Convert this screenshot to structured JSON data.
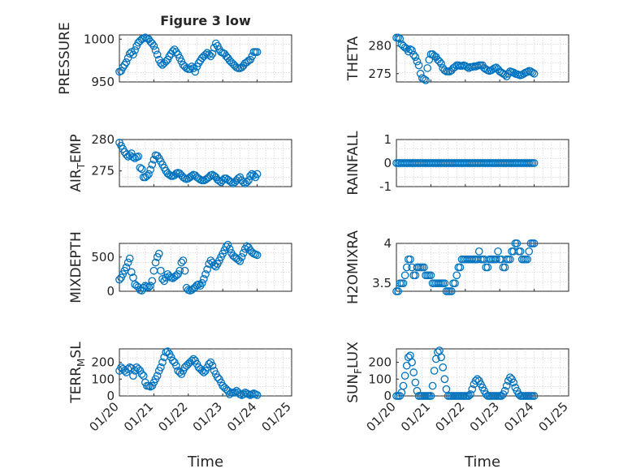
{
  "figure_title": "Figure 3 low",
  "x_axis_label": "Time",
  "x_ticks": [
    "01/20",
    "01/21",
    "01/22",
    "01/23",
    "01/24",
    "01/25"
  ],
  "colors": {
    "marker": "#0072bd",
    "axes": "#262626",
    "grid": "#bdbdbd"
  },
  "chart_data": [
    {
      "type": "scatter",
      "ylabel": "PRESSURE",
      "ylim": [
        950,
        1005
      ],
      "yticks": [
        950,
        1000
      ],
      "x": [
        0.0,
        0.05,
        0.1,
        0.15,
        0.2,
        0.25,
        0.3,
        0.35,
        0.4,
        0.45,
        0.5,
        0.55,
        0.6,
        0.65,
        0.7,
        0.75,
        0.8,
        0.85,
        0.9,
        0.95,
        1.0,
        1.05,
        1.1,
        1.15,
        1.2,
        1.25,
        1.3,
        1.35,
        1.4,
        1.45,
        1.5,
        1.55,
        1.6,
        1.65,
        1.7,
        1.75,
        1.8,
        1.85,
        1.9,
        1.95,
        2.0,
        2.05,
        2.1,
        2.15,
        2.2,
        2.25,
        2.3,
        2.35,
        2.4,
        2.45,
        2.5,
        2.55,
        2.6,
        2.65,
        2.7,
        2.75,
        2.8,
        2.85,
        2.9,
        2.95,
        3.0,
        3.05,
        3.1,
        3.15,
        3.2,
        3.25,
        3.3,
        3.35,
        3.4,
        3.45,
        3.5,
        3.55,
        3.6,
        3.65,
        3.7,
        3.75,
        3.8,
        3.85,
        3.9,
        3.95,
        4.0
      ],
      "y": [
        962,
        963,
        967,
        970,
        973,
        978,
        983,
        985,
        982,
        987,
        992,
        996,
        998,
        1000,
        1001,
        1002,
        1001,
        1000,
        997,
        995,
        992,
        987,
        982,
        976,
        972,
        970,
        972,
        974,
        976,
        980,
        983,
        986,
        988,
        985,
        982,
        978,
        974,
        970,
        968,
        966,
        965,
        965,
        968,
        966,
        962,
        968,
        972,
        975,
        978,
        980,
        982,
        984,
        982,
        980,
        983,
        990,
        995,
        992,
        988,
        985,
        984,
        983,
        980,
        978,
        975,
        973,
        971,
        969,
        967,
        966,
        966,
        967,
        969,
        972,
        973,
        975,
        976,
        980,
        985,
        985,
        985
      ],
      "data_note_ignore": ""
    },
    {
      "type": "scatter",
      "ylabel": "THETA",
      "ylim": [
        273.5,
        282
      ],
      "yticks": [
        275,
        280
      ],
      "x": [
        0.0,
        0.05,
        0.1,
        0.15,
        0.2,
        0.25,
        0.3,
        0.35,
        0.4,
        0.45,
        0.5,
        0.55,
        0.6,
        0.65,
        0.7,
        0.75,
        0.8,
        0.85,
        0.9,
        0.95,
        1.0,
        1.05,
        1.1,
        1.15,
        1.2,
        1.25,
        1.3,
        1.35,
        1.4,
        1.45,
        1.5,
        1.55,
        1.6,
        1.65,
        1.7,
        1.75,
        1.8,
        1.85,
        1.9,
        1.95,
        2.0,
        2.05,
        2.1,
        2.15,
        2.2,
        2.25,
        2.3,
        2.35,
        2.4,
        2.45,
        2.5,
        2.55,
        2.6,
        2.65,
        2.7,
        2.75,
        2.8,
        2.85,
        2.9,
        2.95,
        3.0,
        3.05,
        3.1,
        3.15,
        3.2,
        3.25,
        3.3,
        3.35,
        3.4,
        3.45,
        3.5,
        3.55,
        3.6,
        3.65,
        3.7,
        3.75,
        3.8,
        3.85,
        3.9,
        3.95,
        4.0
      ],
      "y": [
        281.5,
        281.5,
        281.3,
        280.3,
        280.0,
        279.7,
        279.5,
        279.0,
        279.4,
        279.2,
        278.4,
        278.0,
        277.2,
        276.5,
        275.0,
        274.2,
        274.0,
        273.8,
        276.0,
        277.5,
        278.5,
        278.5,
        278.2,
        278.0,
        277.5,
        277.2,
        276.8,
        276.0,
        275.6,
        275.4,
        275.4,
        275.4,
        275.6,
        276.0,
        276.2,
        276.5,
        276.5,
        276.4,
        276.4,
        276.5,
        276.4,
        276.2,
        276.0,
        276.2,
        276.2,
        276.3,
        276.3,
        276.4,
        276.5,
        276.5,
        276.5,
        276.0,
        275.8,
        275.6,
        275.5,
        275.6,
        275.8,
        276.0,
        276.1,
        275.8,
        275.4,
        275.2,
        275.0,
        274.8,
        274.5,
        275.0,
        275.4,
        275.3,
        275.2,
        275.0,
        274.9,
        274.8,
        274.7,
        274.8,
        275.0,
        275.2,
        275.3,
        275.5,
        275.4,
        275.2,
        275.0
      ]
    },
    {
      "type": "scatter",
      "ylabel": "AIR",
      "ylabel_sub": "T",
      "ylabel_tail": "EMP",
      "ylim": [
        272.5,
        280
      ],
      "yticks": [
        275,
        280
      ],
      "x": [
        0.0,
        0.05,
        0.1,
        0.15,
        0.2,
        0.25,
        0.3,
        0.35,
        0.4,
        0.45,
        0.5,
        0.55,
        0.6,
        0.65,
        0.7,
        0.75,
        0.8,
        0.85,
        0.9,
        0.95,
        1.0,
        1.05,
        1.1,
        1.15,
        1.2,
        1.25,
        1.3,
        1.35,
        1.4,
        1.45,
        1.5,
        1.55,
        1.6,
        1.65,
        1.7,
        1.75,
        1.8,
        1.85,
        1.9,
        1.95,
        2.0,
        2.05,
        2.1,
        2.15,
        2.2,
        2.25,
        2.3,
        2.35,
        2.4,
        2.45,
        2.5,
        2.55,
        2.6,
        2.65,
        2.7,
        2.75,
        2.8,
        2.85,
        2.9,
        2.95,
        3.0,
        3.05,
        3.1,
        3.15,
        3.2,
        3.25,
        3.3,
        3.35,
        3.4,
        3.45,
        3.5,
        3.55,
        3.6,
        3.65,
        3.7,
        3.75,
        3.8,
        3.85,
        3.9,
        3.95,
        4.0
      ],
      "y": [
        279.5,
        279.0,
        278.5,
        278.0,
        277.6,
        277.3,
        277.5,
        277.8,
        277.2,
        277.0,
        277.2,
        277.3,
        275.5,
        275.3,
        274.0,
        274.0,
        274.2,
        274.5,
        275.2,
        276.0,
        276.8,
        277.5,
        277.4,
        277.0,
        276.5,
        276.0,
        275.5,
        275.0,
        274.6,
        274.4,
        274.2,
        274.2,
        274.3,
        274.6,
        274.7,
        274.6,
        274.3,
        274.0,
        273.8,
        273.7,
        273.8,
        274.0,
        274.2,
        274.4,
        274.3,
        274.0,
        273.8,
        273.6,
        273.5,
        273.5,
        273.6,
        273.8,
        274.0,
        274.3,
        274.4,
        274.2,
        274.0,
        273.6,
        273.4,
        273.2,
        273.5,
        273.8,
        273.8,
        273.6,
        273.4,
        273.2,
        273.0,
        273.2,
        273.5,
        273.8,
        274.0,
        273.5,
        273.2,
        273.0,
        273.2,
        273.5,
        274.2,
        274.5,
        274.3,
        274.0,
        274.5
      ]
    },
    {
      "type": "scatter",
      "ylabel": "RAINFALL",
      "ylim": [
        -1,
        1
      ],
      "yticks": [
        -1,
        0,
        1
      ],
      "x": [
        0.0,
        0.05,
        0.1,
        0.15,
        0.2,
        0.25,
        0.3,
        0.35,
        0.4,
        0.45,
        0.5,
        0.55,
        0.6,
        0.65,
        0.7,
        0.75,
        0.8,
        0.85,
        0.9,
        0.95,
        1.0,
        1.05,
        1.1,
        1.15,
        1.2,
        1.25,
        1.3,
        1.35,
        1.4,
        1.45,
        1.5,
        1.55,
        1.6,
        1.65,
        1.7,
        1.75,
        1.8,
        1.85,
        1.9,
        1.95,
        2.0,
        2.05,
        2.1,
        2.15,
        2.2,
        2.25,
        2.3,
        2.35,
        2.4,
        2.45,
        2.5,
        2.55,
        2.6,
        2.65,
        2.7,
        2.75,
        2.8,
        2.85,
        2.9,
        2.95,
        3.0,
        3.05,
        3.1,
        3.15,
        3.2,
        3.25,
        3.3,
        3.35,
        3.4,
        3.45,
        3.5,
        3.55,
        3.6,
        3.65,
        3.7,
        3.75,
        3.8,
        3.85,
        3.9,
        3.95,
        4.0
      ],
      "y": [
        0,
        0,
        0,
        0,
        0,
        0,
        0,
        0,
        0,
        0,
        0,
        0,
        0,
        0,
        0,
        0,
        0,
        0,
        0,
        0,
        0,
        0,
        0,
        0,
        0,
        0,
        0,
        0,
        0,
        0,
        0,
        0,
        0,
        0,
        0,
        0,
        0,
        0,
        0,
        0,
        0,
        0,
        0,
        0,
        0,
        0,
        0,
        0,
        0,
        0,
        0,
        0,
        0,
        0,
        0,
        0,
        0,
        0,
        0,
        0,
        0,
        0,
        0,
        0,
        0,
        0,
        0,
        0,
        0,
        0,
        0,
        0,
        0,
        0,
        0,
        0,
        0,
        0,
        0,
        0,
        0
      ]
    },
    {
      "type": "scatter",
      "ylabel": "MIXDEPTH",
      "ylim": [
        0,
        700
      ],
      "yticks": [
        0,
        500
      ],
      "x": [
        0.0,
        0.05,
        0.1,
        0.15,
        0.2,
        0.25,
        0.3,
        0.35,
        0.4,
        0.45,
        0.5,
        0.55,
        0.6,
        0.65,
        0.7,
        0.75,
        0.8,
        0.85,
        0.9,
        0.95,
        1.0,
        1.05,
        1.1,
        1.15,
        1.2,
        1.25,
        1.3,
        1.35,
        1.4,
        1.45,
        1.5,
        1.55,
        1.6,
        1.65,
        1.7,
        1.75,
        1.8,
        1.85,
        1.9,
        1.95,
        2.0,
        2.05,
        2.1,
        2.15,
        2.2,
        2.25,
        2.3,
        2.35,
        2.4,
        2.45,
        2.5,
        2.55,
        2.6,
        2.65,
        2.7,
        2.75,
        2.8,
        2.85,
        2.9,
        2.95,
        3.0,
        3.05,
        3.1,
        3.15,
        3.2,
        3.25,
        3.3,
        3.35,
        3.4,
        3.45,
        3.5,
        3.55,
        3.6,
        3.65,
        3.7,
        3.75,
        3.8,
        3.85,
        3.9,
        3.95,
        4.0
      ],
      "y": [
        170,
        200,
        250,
        300,
        350,
        420,
        480,
        280,
        200,
        100,
        80,
        60,
        20,
        10,
        50,
        80,
        70,
        60,
        80,
        150,
        300,
        420,
        500,
        550,
        300,
        180,
        150,
        200,
        250,
        220,
        200,
        190,
        210,
        230,
        250,
        300,
        420,
        450,
        300,
        50,
        20,
        10,
        20,
        40,
        60,
        90,
        100,
        80,
        120,
        180,
        250,
        320,
        400,
        450,
        420,
        380,
        360,
        400,
        450,
        500,
        550,
        600,
        650,
        680,
        620,
        560,
        520,
        500,
        480,
        460,
        440,
        500,
        560,
        620,
        660,
        640,
        600,
        570,
        550,
        540,
        530
      ]
    },
    {
      "type": "scatter",
      "ylabel": "H2OMIXRA",
      "ylim": [
        3.4,
        4
      ],
      "yticks": [
        3.5,
        4
      ],
      "x": [
        0.0,
        0.05,
        0.1,
        0.15,
        0.2,
        0.25,
        0.3,
        0.35,
        0.4,
        0.45,
        0.5,
        0.55,
        0.6,
        0.65,
        0.7,
        0.75,
        0.8,
        0.85,
        0.9,
        0.95,
        1.0,
        1.05,
        1.1,
        1.15,
        1.2,
        1.25,
        1.3,
        1.35,
        1.4,
        1.45,
        1.5,
        1.55,
        1.6,
        1.65,
        1.7,
        1.75,
        1.8,
        1.85,
        1.9,
        1.95,
        2.0,
        2.05,
        2.1,
        2.15,
        2.2,
        2.25,
        2.3,
        2.35,
        2.4,
        2.45,
        2.5,
        2.55,
        2.6,
        2.65,
        2.7,
        2.75,
        2.8,
        2.85,
        2.9,
        2.95,
        3.0,
        3.05,
        3.1,
        3.15,
        3.2,
        3.25,
        3.3,
        3.35,
        3.4,
        3.45,
        3.5,
        3.55,
        3.6,
        3.65,
        3.7,
        3.75,
        3.8,
        3.85,
        3.9,
        3.95,
        4.0
      ],
      "y": [
        3.4,
        3.4,
        3.5,
        3.5,
        3.5,
        3.6,
        3.7,
        3.8,
        3.8,
        3.7,
        3.6,
        3.6,
        3.7,
        3.7,
        3.7,
        3.7,
        3.7,
        3.6,
        3.6,
        3.6,
        3.6,
        3.5,
        3.5,
        3.5,
        3.5,
        3.5,
        3.5,
        3.5,
        3.5,
        3.4,
        3.4,
        3.4,
        3.4,
        3.5,
        3.5,
        3.6,
        3.7,
        3.7,
        3.8,
        3.8,
        3.8,
        3.8,
        3.8,
        3.8,
        3.8,
        3.8,
        3.8,
        3.8,
        3.9,
        3.8,
        3.8,
        3.8,
        3.7,
        3.7,
        3.8,
        3.8,
        3.8,
        3.8,
        3.8,
        3.9,
        3.8,
        3.8,
        3.7,
        3.7,
        3.8,
        3.8,
        3.8,
        3.9,
        3.9,
        4.0,
        4.0,
        3.9,
        3.9,
        3.8,
        3.8,
        3.8,
        3.8,
        3.9,
        4.0,
        4.0,
        4.0
      ]
    },
    {
      "type": "scatter",
      "ylabel": "TERR",
      "ylabel_sub": "M",
      "ylabel_tail": "SL",
      "ylim": [
        0,
        280
      ],
      "yticks": [
        0,
        100,
        200
      ],
      "x": [
        0.0,
        0.05,
        0.1,
        0.15,
        0.2,
        0.25,
        0.3,
        0.35,
        0.4,
        0.45,
        0.5,
        0.55,
        0.6,
        0.65,
        0.7,
        0.75,
        0.8,
        0.85,
        0.9,
        0.95,
        1.0,
        1.05,
        1.1,
        1.15,
        1.2,
        1.25,
        1.3,
        1.35,
        1.4,
        1.45,
        1.5,
        1.55,
        1.6,
        1.65,
        1.7,
        1.75,
        1.8,
        1.85,
        1.9,
        1.95,
        2.0,
        2.05,
        2.1,
        2.15,
        2.2,
        2.25,
        2.3,
        2.35,
        2.4,
        2.45,
        2.5,
        2.55,
        2.6,
        2.65,
        2.7,
        2.75,
        2.8,
        2.85,
        2.9,
        2.95,
        3.0,
        3.05,
        3.1,
        3.15,
        3.2,
        3.25,
        3.3,
        3.35,
        3.4,
        3.45,
        3.5,
        3.55,
        3.6,
        3.65,
        3.7,
        3.75,
        3.8,
        3.85,
        3.9,
        3.95,
        4.0
      ],
      "y": [
        150,
        170,
        160,
        150,
        140,
        160,
        170,
        165,
        120,
        150,
        170,
        160,
        150,
        130,
        120,
        80,
        60,
        60,
        55,
        60,
        80,
        100,
        120,
        150,
        170,
        200,
        230,
        260,
        265,
        250,
        230,
        210,
        200,
        180,
        150,
        140,
        130,
        150,
        170,
        180,
        190,
        200,
        210,
        220,
        210,
        190,
        170,
        160,
        150,
        140,
        150,
        170,
        190,
        200,
        180,
        150,
        130,
        110,
        100,
        80,
        60,
        50,
        40,
        30,
        10,
        20,
        20,
        20,
        30,
        20,
        10,
        5,
        10,
        20,
        15,
        10,
        5,
        10,
        15,
        10,
        5
      ]
    },
    {
      "type": "scatter",
      "ylabel": "SUN",
      "ylabel_sub": "F",
      "ylabel_tail": "LUX",
      "ylim": [
        0,
        280
      ],
      "yticks": [
        0,
        100,
        200
      ],
      "x": [
        0.0,
        0.05,
        0.1,
        0.15,
        0.2,
        0.25,
        0.3,
        0.35,
        0.4,
        0.45,
        0.5,
        0.55,
        0.6,
        0.65,
        0.7,
        0.75,
        0.8,
        0.85,
        0.9,
        0.95,
        1.0,
        1.05,
        1.1,
        1.15,
        1.2,
        1.25,
        1.3,
        1.35,
        1.4,
        1.45,
        1.5,
        1.55,
        1.6,
        1.65,
        1.7,
        1.75,
        1.8,
        1.85,
        1.9,
        1.95,
        2.0,
        2.05,
        2.1,
        2.15,
        2.2,
        2.25,
        2.3,
        2.35,
        2.4,
        2.45,
        2.5,
        2.55,
        2.6,
        2.65,
        2.7,
        2.75,
        2.8,
        2.85,
        2.9,
        2.95,
        3.0,
        3.05,
        3.1,
        3.15,
        3.2,
        3.25,
        3.3,
        3.35,
        3.4,
        3.45,
        3.5,
        3.55,
        3.6,
        3.65,
        3.7,
        3.75,
        3.8,
        3.85,
        3.9,
        3.95,
        4.0
      ],
      "y": [
        0,
        0,
        0,
        20,
        60,
        120,
        180,
        230,
        240,
        200,
        140,
        80,
        30,
        0,
        0,
        0,
        0,
        0,
        0,
        0,
        0,
        60,
        150,
        220,
        260,
        270,
        230,
        170,
        100,
        40,
        0,
        0,
        0,
        0,
        0,
        0,
        0,
        0,
        0,
        0,
        0,
        0,
        0,
        10,
        40,
        70,
        90,
        100,
        90,
        70,
        50,
        30,
        10,
        0,
        0,
        0,
        0,
        0,
        0,
        0,
        0,
        0,
        10,
        30,
        60,
        90,
        110,
        100,
        80,
        50,
        30,
        10,
        0,
        0,
        0,
        0,
        0,
        0,
        0,
        0,
        0
      ]
    }
  ]
}
